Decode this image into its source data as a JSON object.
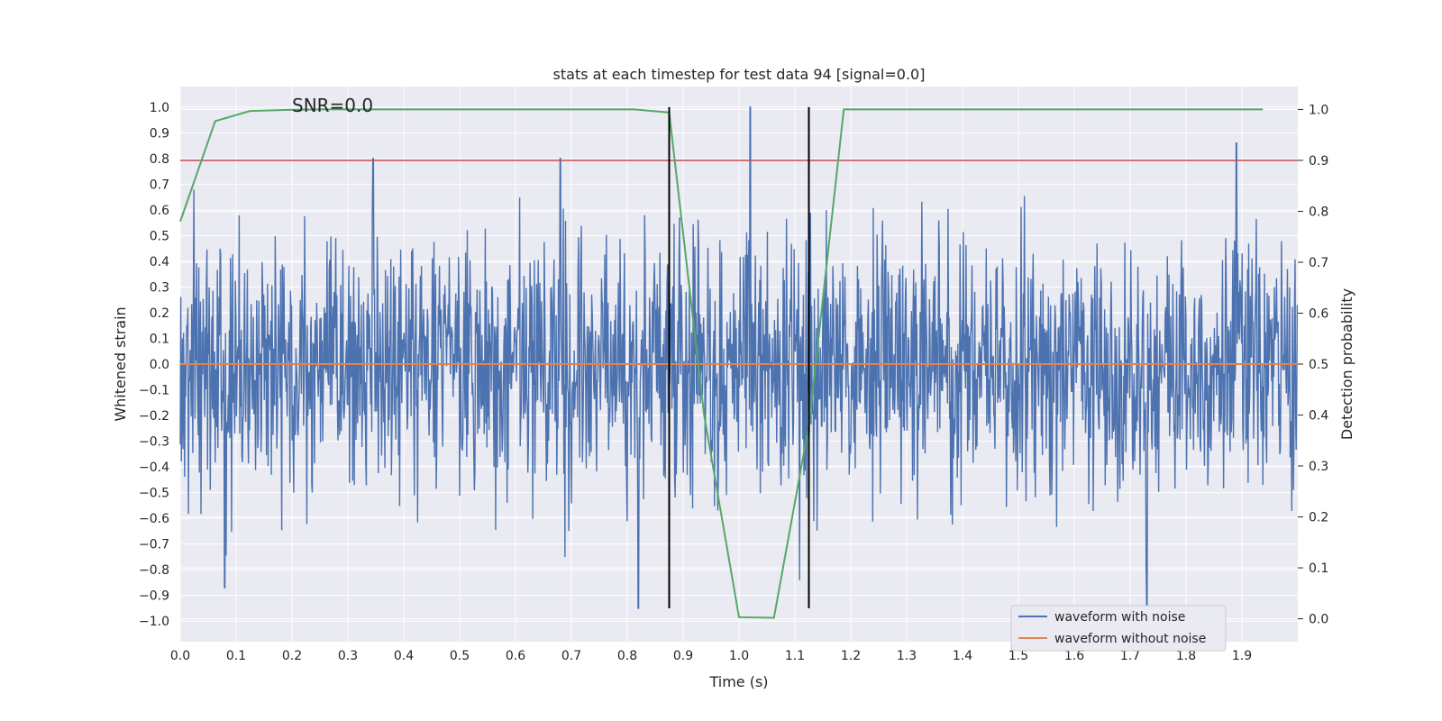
{
  "chart_data": {
    "type": "line",
    "title": "stats at each timestep for test data 94 [signal=0.0]",
    "xlabel": "Time (s)",
    "ylabel": "Whitened strain",
    "y2label": "Detection probability",
    "annotation": "SNR=0.0",
    "xlim": [
      0.0,
      2.0
    ],
    "ylim": [
      -1.08,
      1.08
    ],
    "y2lim": [
      -0.045,
      1.045
    ],
    "x_ticks": [
      "0.0",
      "0.1",
      "0.2",
      "0.3",
      "0.4",
      "0.5",
      "0.6",
      "0.7",
      "0.8",
      "0.9",
      "1.0",
      "1.1",
      "1.2",
      "1.3",
      "1.4",
      "1.5",
      "1.6",
      "1.7",
      "1.8",
      "1.9"
    ],
    "y_ticks": [
      "1.0",
      "0.9",
      "0.8",
      "0.7",
      "0.6",
      "0.5",
      "0.4",
      "0.3",
      "0.2",
      "0.1",
      "0.0",
      "−0.1",
      "−0.2",
      "−0.3",
      "−0.4",
      "−0.5",
      "−0.6",
      "−0.7",
      "−0.8",
      "−0.9",
      "−1.0"
    ],
    "y2_ticks": [
      "1.0",
      "0.9",
      "0.8",
      "0.7",
      "0.6",
      "0.5",
      "0.4",
      "0.3",
      "0.2",
      "0.1",
      "0.0"
    ],
    "grid": true,
    "legend_position": "lower-right",
    "series": [
      {
        "name": "waveform with noise",
        "axis": "left",
        "color": "#4c72b0",
        "style": "dense noise, mostly within ±0.6, peaks near +1.0 at t≈1.02 and ≈-0.95 at t≈0.82, 1.73"
      },
      {
        "name": "waveform without noise",
        "axis": "left",
        "color": "#dd8452",
        "x": [
          0.0,
          2.0
        ],
        "y": [
          0.0,
          0.0
        ]
      }
    ],
    "detection_probability": {
      "axis": "right",
      "color": "#55a868",
      "x": [
        0.0,
        0.0625,
        0.125,
        0.1875,
        0.25,
        0.3125,
        0.375,
        0.4375,
        0.5,
        0.5625,
        0.625,
        0.6875,
        0.75,
        0.8125,
        0.875,
        0.9375,
        1.0,
        1.0625,
        1.125,
        1.1875,
        1.25,
        1.3125,
        1.375,
        1.4375,
        1.5,
        1.5625,
        1.625,
        1.6875,
        1.75,
        1.8125,
        1.875,
        1.9375
      ],
      "y": [
        0.78,
        0.977,
        0.997,
        0.999,
        1.0,
        1.0,
        1.0,
        1.0,
        1.0,
        1.0,
        1.0,
        1.0,
        1.0,
        1.0,
        0.994,
        0.4,
        0.003,
        0.002,
        0.38,
        1.0,
        1.0,
        1.0,
        1.0,
        1.0,
        1.0,
        1.0,
        1.0,
        1.0,
        1.0,
        1.0,
        1.0,
        1.0
      ]
    },
    "threshold": {
      "axis": "right",
      "value": 0.9,
      "color": "#c44e52"
    },
    "vlines": [
      {
        "x": 0.875,
        "ymin": -0.95,
        "ymax": 1.0
      },
      {
        "x": 1.125,
        "ymin": -0.95,
        "ymax": 1.0
      }
    ]
  }
}
